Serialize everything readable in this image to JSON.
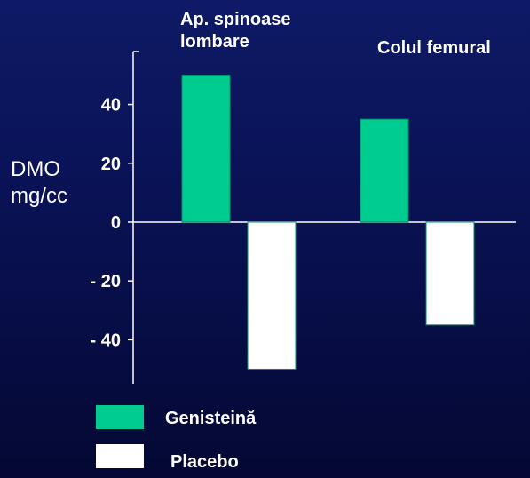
{
  "chart_data": {
    "type": "bar",
    "title": "",
    "xlabel": "",
    "ylabel": [
      "DMO",
      "mg/cc"
    ],
    "categories": [
      [
        "Ap. spinoase",
        "lombare"
      ],
      [
        "Colul femural"
      ]
    ],
    "series": [
      {
        "name": "Genisteină",
        "values": [
          50,
          35
        ],
        "color": "#00cc8f"
      },
      {
        "name": "Placebo",
        "values": [
          -50,
          -35
        ],
        "color": "#ffffff"
      }
    ],
    "ylim": [
      -55,
      58
    ],
    "yticks": [
      40,
      20,
      0,
      -20,
      -40
    ],
    "ytick_labels": [
      "40",
      "20",
      "0",
      "- 20",
      "- 40"
    ],
    "grid": false,
    "legend_position": "bottom-left"
  }
}
